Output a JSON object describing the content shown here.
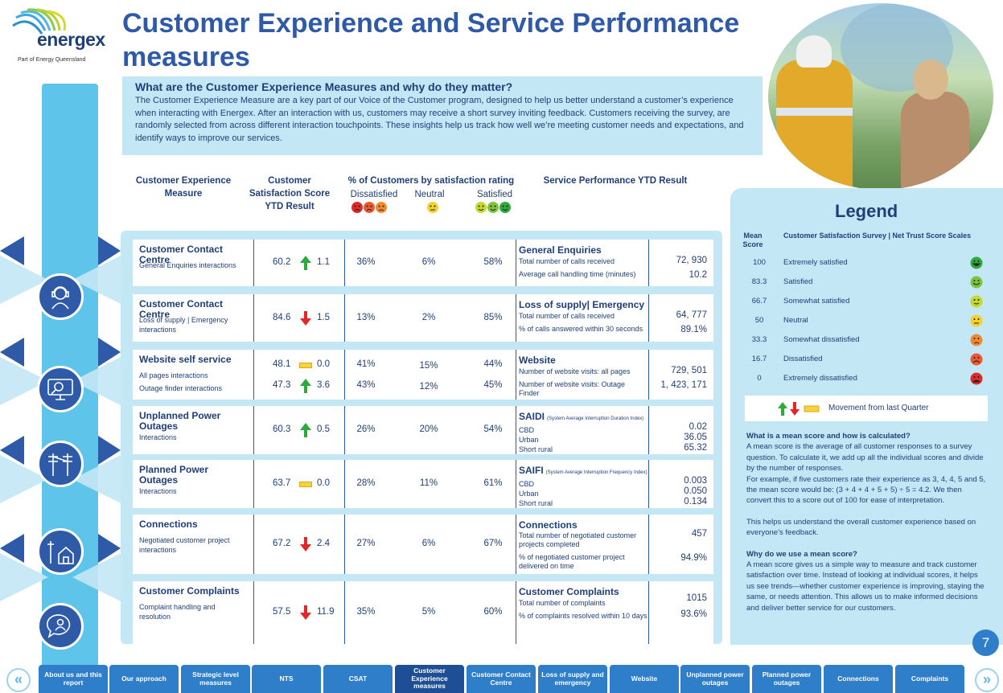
{
  "brand": {
    "name": "energex",
    "tagline": "Part of Energy Queensland"
  },
  "title": "Customer Experience and Service Performance measures",
  "intro": {
    "heading": "What are the Customer Experience Measures and why do they matter?",
    "body": "The Customer Experience Measure are a key part of our Voice of the Customer program, designed to help us better understand a customer’s experience when interacting with Energex. After an interaction with us, customers may receive a short survey inviting feedback. Customers receiving the survey, are randomly selected from across different interaction touchpoints. These insights help us track how well we’re meeting customer needs and expectations, and identify ways to improve our services."
  },
  "columns": {
    "measure": "Customer Experience Measure",
    "score": "Customer Satisfaction Score YTD Result",
    "pct": "% of Customers by satisfaction rating",
    "dissatisfied": "Dissatisfied",
    "neutral": "Neutral",
    "satisfied": "Satisfied",
    "service": "Service Performance YTD Result"
  },
  "colors": {
    "up": "#2eaa3c",
    "down": "#e32626",
    "flat": "#f7d43a",
    "accent": "#2e5aa7",
    "panel": "#c4e7f6"
  },
  "rows": [
    {
      "title": "Customer Contact Centre",
      "subs": [
        "General Enquiries interactions"
      ],
      "scores": [
        {
          "score": "60.2",
          "dir": "up",
          "change": "1.1"
        }
      ],
      "pcts": [
        [
          "36%",
          "6%",
          "58%"
        ]
      ],
      "sp_title": "General Enquiries",
      "sp_lines": [
        "Total number of calls received",
        "Average call handling time (minutes)"
      ],
      "sp_vals": [
        "72, 930",
        "10.2"
      ]
    },
    {
      "title": "Customer Contact Centre",
      "subs": [
        "Loss of supply | Emergency interactions"
      ],
      "scores": [
        {
          "score": "84.6",
          "dir": "down",
          "change": "1.5"
        }
      ],
      "pcts": [
        [
          "13%",
          "2%",
          "85%"
        ]
      ],
      "sp_title": "Loss of supply| Emergency",
      "sp_lines": [
        "Total number of calls received",
        "% of calls answered within 30 seconds"
      ],
      "sp_vals": [
        "64, 777",
        "89.1%"
      ]
    },
    {
      "title": "Website self service",
      "subs": [
        "All pages interactions",
        "Outage finder interactions"
      ],
      "scores": [
        {
          "score": "48.1",
          "dir": "flat",
          "change": "0.0"
        },
        {
          "score": "47.3",
          "dir": "up",
          "change": "3.6"
        }
      ],
      "pcts": [
        [
          "41%",
          "15%",
          "44%"
        ],
        [
          "43%",
          "12%",
          "45%"
        ]
      ],
      "sp_title": "Website",
      "sp_lines": [
        "Number of website visits: all pages",
        "Number of website visits: Outage Finder"
      ],
      "sp_vals": [
        "729, 501",
        "1, 423, 171"
      ]
    },
    {
      "title": "Unplanned Power Outages",
      "subs": [
        "Interactions"
      ],
      "scores": [
        {
          "score": "60.3",
          "dir": "up",
          "change": "0.5"
        }
      ],
      "pcts": [
        [
          "26%",
          "20%",
          "54%"
        ]
      ],
      "sp_title": "SAIDI",
      "sp_small": "(System Average Interruption Duration Index)",
      "sp_lines": [
        "CBD",
        "Urban",
        "Short rural"
      ],
      "sp_vals": [
        "0.02",
        "36.05",
        "65.32"
      ]
    },
    {
      "title": "Planned Power Outages",
      "subs": [
        "Interactions"
      ],
      "scores": [
        {
          "score": "63.7",
          "dir": "flat",
          "change": "0.0"
        }
      ],
      "pcts": [
        [
          "28%",
          "11%",
          "61%"
        ]
      ],
      "sp_title": "SAIFI",
      "sp_small": "(System Average Interruption Frequency Index)",
      "sp_lines": [
        "CBD",
        "Urban",
        "Short rural"
      ],
      "sp_vals": [
        "0.003",
        "0.050",
        "0.134"
      ]
    },
    {
      "title": "Connections",
      "subs": [
        "Negotiated customer project interactions"
      ],
      "scores": [
        {
          "score": "67.2",
          "dir": "down",
          "change": "2.4"
        }
      ],
      "pcts": [
        [
          "27%",
          "6%",
          "67%"
        ]
      ],
      "sp_title": "Connections",
      "sp_lines": [
        "Total number of negotiated customer projects completed",
        "% of negotiated customer project delivered on time"
      ],
      "sp_vals": [
        "457",
        "94.9%"
      ]
    },
    {
      "title": "Customer Complaints",
      "subs": [
        "Complaint handling and resolution"
      ],
      "scores": [
        {
          "score": "57.5",
          "dir": "down",
          "change": "11.9"
        }
      ],
      "pcts": [
        [
          "35%",
          "5%",
          "60%"
        ]
      ],
      "sp_title": "Customer Complaints",
      "sp_lines": [
        "Total number of complaints",
        "% of complaints resolved within 10 days"
      ],
      "sp_vals": [
        "1015",
        "93.6%"
      ]
    }
  ],
  "legend": {
    "title": "Legend",
    "mean_label": "Mean Score",
    "scale_label": "Customer Satisfaction Survey | Net Trust Score Scales",
    "items": [
      {
        "score": "100",
        "label": "Extremely satisfied",
        "color": "#2eaa3c",
        "mood": "very-happy"
      },
      {
        "score": "83.3",
        "label": "Satisfied",
        "color": "#7cc43c",
        "mood": "happy"
      },
      {
        "score": "66.7",
        "label": "Somewhat satisfied",
        "color": "#c4d92e",
        "mood": "smile"
      },
      {
        "score": "50",
        "label": "Neutral",
        "color": "#f5d130",
        "mood": "neutral"
      },
      {
        "score": "33.3",
        "label": "Somewhat dissatisfied",
        "color": "#f08a30",
        "mood": "frown"
      },
      {
        "score": "16.7",
        "label": "Dissatisfied",
        "color": "#ea5a2e",
        "mood": "sad"
      },
      {
        "score": "0",
        "label": "Extremely dissatisfied",
        "color": "#dd2a2a",
        "mood": "angry"
      }
    ],
    "movement": "Movement from last Quarter",
    "q1": "What is a mean score and how is calculated?",
    "a1": "A mean score is the average of all customer responses to a survey question. To calculate it, we add up all the individual scores and divide by the number of responses.",
    "a1b": "For example, if five customers rate their experience as 3, 4, 4, 5 and 5, the mean score would be: (3 + 4 + 4 + 5 + 5) ÷ 5 = 4.2. We then convert this to a score out of 100 for ease of interpretation.",
    "a1c": "This helps us understand the overall customer experience based on everyone’s feedback.",
    "q2": "Why do we use a mean score?",
    "a2": "A mean score gives us a simple way to measure and track customer satisfaction over time. Instead of looking at individual scores, it helps us see trends—whether customer experience is improving, staying the same, or needs attention. This allows us to make informed decisions and deliver better service for our customers."
  },
  "page_number": "7",
  "nav": {
    "prev": "«",
    "next": "»",
    "items": [
      "About us and this report",
      "Our approach",
      "Strategic level measures",
      "NTS",
      "CSAT",
      "Customer Experience measures",
      "Customer Contact Centre",
      "Loss of supply and emergency",
      "Website",
      "Unplanned power outages",
      "Planned power outages",
      "Connections",
      "Complaints"
    ],
    "active": 5
  }
}
